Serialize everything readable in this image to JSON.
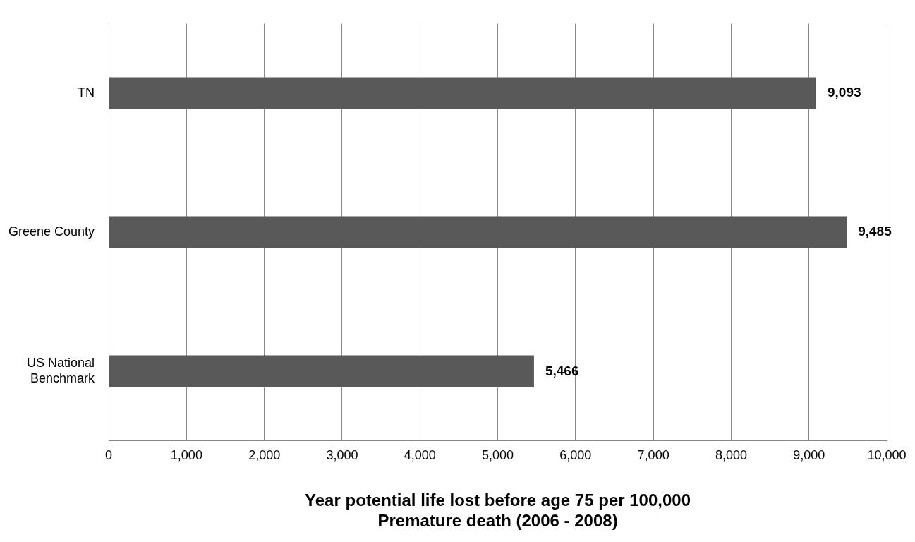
{
  "chart_data": {
    "type": "bar",
    "orientation": "horizontal",
    "xlabel": "Year potential life lost before age 75 per 100,000\nPremature death (2006 - 2008)",
    "categories": [
      "TN",
      "Greene County",
      "US National Benchmark"
    ],
    "values": [
      9093,
      9485,
      5466
    ],
    "color": "#595959",
    "value_labels": [
      "9,093",
      "9,485",
      "5,466"
    ],
    "xlim": [
      0,
      10000
    ],
    "xticks": [
      {
        "value": 0,
        "label": "0"
      },
      {
        "value": 1000,
        "label": "1,000"
      },
      {
        "value": 2000,
        "label": "2,000"
      },
      {
        "value": 3000,
        "label": "3,000"
      },
      {
        "value": 4000,
        "label": "4,000"
      },
      {
        "value": 5000,
        "label": "5,000"
      },
      {
        "value": 6000,
        "label": "6,000"
      },
      {
        "value": 7000,
        "label": "7,000"
      },
      {
        "value": 8000,
        "label": "8,000"
      },
      {
        "value": 9000,
        "label": "9,000"
      },
      {
        "value": 10000,
        "label": "10,000"
      }
    ],
    "grid": "x",
    "legend": false
  }
}
